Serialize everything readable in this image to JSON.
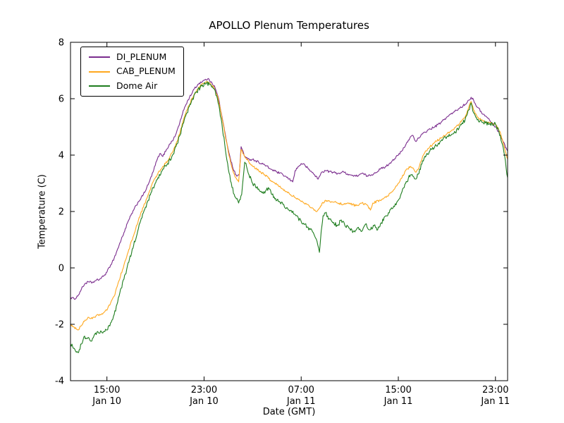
{
  "chart_data": {
    "type": "line",
    "title": "APOLLO Plenum Temperatures",
    "xlabel": "Date (GMT)",
    "ylabel": "Temperature (C)",
    "x_unit_hours_origin": "Jan 10 12:00 GMT",
    "xlim": [
      0,
      36
    ],
    "ylim": [
      -4,
      8
    ],
    "grid": false,
    "legend_position": "upper left",
    "x_ticks": [
      {
        "t": 3,
        "time": "15:00",
        "date": "Jan 10"
      },
      {
        "t": 11,
        "time": "23:00",
        "date": "Jan 10"
      },
      {
        "t": 19,
        "time": "07:00",
        "date": "Jan 11"
      },
      {
        "t": 27,
        "time": "15:00",
        "date": "Jan 11"
      },
      {
        "t": 35,
        "time": "23:00",
        "date": "Jan 11"
      }
    ],
    "y_ticks": [
      -4,
      -2,
      0,
      2,
      4,
      6,
      8
    ],
    "series": [
      {
        "name": "DI_PLENUM",
        "color": "#7b2d8e",
        "noise": 0.04,
        "points": [
          [
            0,
            -1.05
          ],
          [
            0.3,
            -1.1
          ],
          [
            0.6,
            -1.0
          ],
          [
            0.9,
            -0.75
          ],
          [
            1.2,
            -0.55
          ],
          [
            1.5,
            -0.5
          ],
          [
            1.8,
            -0.52
          ],
          [
            2.1,
            -0.45
          ],
          [
            2.4,
            -0.4
          ],
          [
            2.7,
            -0.3
          ],
          [
            3.0,
            -0.15
          ],
          [
            3.3,
            0.1
          ],
          [
            3.6,
            0.35
          ],
          [
            4.0,
            0.8
          ],
          [
            4.4,
            1.25
          ],
          [
            4.8,
            1.7
          ],
          [
            5.2,
            2.05
          ],
          [
            5.6,
            2.35
          ],
          [
            6.0,
            2.6
          ],
          [
            6.4,
            2.95
          ],
          [
            6.8,
            3.4
          ],
          [
            7.1,
            3.8
          ],
          [
            7.35,
            4.05
          ],
          [
            7.6,
            3.95
          ],
          [
            7.9,
            4.2
          ],
          [
            8.2,
            4.4
          ],
          [
            8.6,
            4.65
          ],
          [
            9.0,
            5.15
          ],
          [
            9.4,
            5.7
          ],
          [
            9.8,
            6.05
          ],
          [
            10.2,
            6.35
          ],
          [
            10.6,
            6.55
          ],
          [
            11.0,
            6.65
          ],
          [
            11.3,
            6.7
          ],
          [
            11.6,
            6.6
          ],
          [
            11.9,
            6.4
          ],
          [
            12.2,
            6.0
          ],
          [
            12.5,
            5.3
          ],
          [
            12.8,
            4.6
          ],
          [
            13.1,
            4.0
          ],
          [
            13.4,
            3.5
          ],
          [
            13.7,
            3.25
          ],
          [
            13.9,
            3.3
          ],
          [
            14.05,
            4.3
          ],
          [
            14.2,
            4.15
          ],
          [
            14.35,
            3.95
          ],
          [
            14.6,
            3.85
          ],
          [
            15.0,
            3.85
          ],
          [
            15.5,
            3.75
          ],
          [
            16.0,
            3.65
          ],
          [
            16.5,
            3.5
          ],
          [
            17.0,
            3.4
          ],
          [
            17.5,
            3.3
          ],
          [
            18.0,
            3.15
          ],
          [
            18.3,
            3.05
          ],
          [
            18.5,
            3.45
          ],
          [
            18.8,
            3.6
          ],
          [
            19.0,
            3.7
          ],
          [
            19.3,
            3.65
          ],
          [
            19.6,
            3.5
          ],
          [
            20.0,
            3.35
          ],
          [
            20.4,
            3.15
          ],
          [
            20.7,
            3.4
          ],
          [
            21.0,
            3.45
          ],
          [
            21.5,
            3.4
          ],
          [
            22.0,
            3.35
          ],
          [
            22.5,
            3.4
          ],
          [
            23.0,
            3.3
          ],
          [
            23.5,
            3.25
          ],
          [
            24.0,
            3.35
          ],
          [
            24.5,
            3.25
          ],
          [
            25.0,
            3.35
          ],
          [
            25.5,
            3.5
          ],
          [
            26.0,
            3.6
          ],
          [
            26.5,
            3.8
          ],
          [
            27.0,
            4.0
          ],
          [
            27.3,
            4.15
          ],
          [
            27.6,
            4.35
          ],
          [
            28.0,
            4.65
          ],
          [
            28.2,
            4.7
          ],
          [
            28.4,
            4.5
          ],
          [
            28.7,
            4.6
          ],
          [
            29.0,
            4.75
          ],
          [
            29.5,
            4.9
          ],
          [
            30.0,
            5.0
          ],
          [
            30.5,
            5.15
          ],
          [
            31.0,
            5.35
          ],
          [
            31.5,
            5.5
          ],
          [
            32.0,
            5.65
          ],
          [
            32.5,
            5.8
          ],
          [
            32.8,
            5.95
          ],
          [
            33.0,
            6.05
          ],
          [
            33.2,
            5.95
          ],
          [
            33.5,
            5.7
          ],
          [
            34.0,
            5.45
          ],
          [
            34.5,
            5.25
          ],
          [
            35.0,
            5.0
          ],
          [
            35.3,
            4.8
          ],
          [
            35.6,
            4.5
          ],
          [
            36.0,
            4.15
          ]
        ]
      },
      {
        "name": "CAB_PLENUM",
        "color": "#ffa81e",
        "noise": 0.04,
        "points": [
          [
            0,
            -2.0
          ],
          [
            0.3,
            -2.1
          ],
          [
            0.6,
            -2.2
          ],
          [
            0.9,
            -2.05
          ],
          [
            1.2,
            -1.85
          ],
          [
            1.5,
            -1.75
          ],
          [
            1.8,
            -1.8
          ],
          [
            2.1,
            -1.7
          ],
          [
            2.4,
            -1.65
          ],
          [
            2.7,
            -1.6
          ],
          [
            3.0,
            -1.5
          ],
          [
            3.3,
            -1.25
          ],
          [
            3.6,
            -1.0
          ],
          [
            4.0,
            -0.45
          ],
          [
            4.4,
            0.1
          ],
          [
            4.8,
            0.65
          ],
          [
            5.2,
            1.15
          ],
          [
            5.6,
            1.7
          ],
          [
            6.0,
            2.15
          ],
          [
            6.4,
            2.6
          ],
          [
            6.8,
            3.05
          ],
          [
            7.2,
            3.35
          ],
          [
            7.6,
            3.6
          ],
          [
            8.0,
            3.8
          ],
          [
            8.4,
            4.1
          ],
          [
            8.8,
            4.5
          ],
          [
            9.2,
            5.1
          ],
          [
            9.6,
            5.6
          ],
          [
            10.0,
            6.0
          ],
          [
            10.4,
            6.3
          ],
          [
            10.8,
            6.5
          ],
          [
            11.2,
            6.6
          ],
          [
            11.5,
            6.55
          ],
          [
            11.8,
            6.4
          ],
          [
            12.1,
            6.1
          ],
          [
            12.4,
            5.5
          ],
          [
            12.7,
            4.8
          ],
          [
            13.0,
            4.1
          ],
          [
            13.3,
            3.55
          ],
          [
            13.6,
            3.2
          ],
          [
            13.85,
            3.05
          ],
          [
            14.05,
            4.2
          ],
          [
            14.2,
            4.05
          ],
          [
            14.4,
            3.9
          ],
          [
            14.7,
            3.75
          ],
          [
            15.0,
            3.6
          ],
          [
            15.5,
            3.45
          ],
          [
            16.0,
            3.3
          ],
          [
            16.5,
            3.1
          ],
          [
            17.0,
            2.95
          ],
          [
            17.5,
            2.8
          ],
          [
            18.0,
            2.65
          ],
          [
            18.5,
            2.5
          ],
          [
            19.0,
            2.35
          ],
          [
            19.5,
            2.25
          ],
          [
            20.0,
            2.1
          ],
          [
            20.3,
            2.0
          ],
          [
            20.6,
            2.2
          ],
          [
            21.0,
            2.4
          ],
          [
            21.5,
            2.35
          ],
          [
            22.0,
            2.3
          ],
          [
            22.5,
            2.25
          ],
          [
            23.0,
            2.3
          ],
          [
            23.5,
            2.2
          ],
          [
            24.0,
            2.3
          ],
          [
            24.5,
            2.2
          ],
          [
            24.7,
            2.05
          ],
          [
            24.9,
            2.3
          ],
          [
            25.5,
            2.4
          ],
          [
            26.0,
            2.5
          ],
          [
            26.5,
            2.7
          ],
          [
            27.0,
            3.0
          ],
          [
            27.3,
            3.2
          ],
          [
            27.6,
            3.45
          ],
          [
            28.0,
            3.6
          ],
          [
            28.2,
            3.55
          ],
          [
            28.4,
            3.4
          ],
          [
            28.7,
            3.55
          ],
          [
            29.0,
            3.95
          ],
          [
            29.3,
            4.15
          ],
          [
            29.6,
            4.3
          ],
          [
            30.0,
            4.45
          ],
          [
            30.5,
            4.6
          ],
          [
            31.0,
            4.75
          ],
          [
            31.5,
            4.9
          ],
          [
            32.0,
            5.1
          ],
          [
            32.5,
            5.35
          ],
          [
            32.8,
            5.7
          ],
          [
            33.0,
            5.9
          ],
          [
            33.2,
            5.6
          ],
          [
            33.5,
            5.35
          ],
          [
            34.0,
            5.2
          ],
          [
            34.5,
            5.15
          ],
          [
            35.0,
            5.1
          ],
          [
            35.4,
            4.8
          ],
          [
            35.7,
            4.35
          ],
          [
            36.0,
            3.85
          ]
        ]
      },
      {
        "name": "Dome Air",
        "color": "#1e7d1e",
        "noise": 0.07,
        "points": [
          [
            0,
            -2.7
          ],
          [
            0.3,
            -2.85
          ],
          [
            0.6,
            -3.0
          ],
          [
            0.9,
            -2.7
          ],
          [
            1.1,
            -2.45
          ],
          [
            1.4,
            -2.5
          ],
          [
            1.7,
            -2.6
          ],
          [
            2.0,
            -2.35
          ],
          [
            2.3,
            -2.3
          ],
          [
            2.6,
            -2.3
          ],
          [
            3.0,
            -2.2
          ],
          [
            3.3,
            -1.95
          ],
          [
            3.6,
            -1.65
          ],
          [
            4.0,
            -1.0
          ],
          [
            4.4,
            -0.4
          ],
          [
            4.8,
            0.2
          ],
          [
            5.2,
            0.8
          ],
          [
            5.6,
            1.4
          ],
          [
            6.0,
            1.95
          ],
          [
            6.4,
            2.4
          ],
          [
            6.8,
            2.85
          ],
          [
            7.2,
            3.2
          ],
          [
            7.6,
            3.5
          ],
          [
            8.0,
            3.7
          ],
          [
            8.4,
            4.0
          ],
          [
            8.8,
            4.4
          ],
          [
            9.2,
            5.0
          ],
          [
            9.6,
            5.5
          ],
          [
            10.0,
            5.95
          ],
          [
            10.4,
            6.25
          ],
          [
            10.8,
            6.45
          ],
          [
            11.2,
            6.55
          ],
          [
            11.5,
            6.5
          ],
          [
            11.8,
            6.35
          ],
          [
            12.1,
            6.0
          ],
          [
            12.4,
            5.3
          ],
          [
            12.7,
            4.4
          ],
          [
            13.0,
            3.5
          ],
          [
            13.3,
            2.85
          ],
          [
            13.6,
            2.5
          ],
          [
            13.85,
            2.3
          ],
          [
            14.1,
            2.6
          ],
          [
            14.35,
            3.75
          ],
          [
            14.5,
            3.6
          ],
          [
            14.7,
            3.3
          ],
          [
            15.0,
            3.0
          ],
          [
            15.5,
            2.8
          ],
          [
            16.0,
            2.65
          ],
          [
            16.3,
            2.85
          ],
          [
            16.6,
            2.6
          ],
          [
            17.0,
            2.4
          ],
          [
            17.5,
            2.25
          ],
          [
            18.0,
            2.05
          ],
          [
            18.5,
            1.9
          ],
          [
            19.0,
            1.65
          ],
          [
            19.5,
            1.45
          ],
          [
            20.0,
            1.25
          ],
          [
            20.3,
            0.95
          ],
          [
            20.5,
            0.55
          ],
          [
            20.65,
            1.3
          ],
          [
            20.8,
            1.85
          ],
          [
            21.0,
            1.95
          ],
          [
            21.3,
            1.75
          ],
          [
            21.6,
            1.6
          ],
          [
            22.0,
            1.5
          ],
          [
            22.3,
            1.7
          ],
          [
            22.6,
            1.5
          ],
          [
            23.0,
            1.4
          ],
          [
            23.3,
            1.3
          ],
          [
            23.6,
            1.4
          ],
          [
            24.0,
            1.3
          ],
          [
            24.3,
            1.55
          ],
          [
            24.6,
            1.35
          ],
          [
            25.0,
            1.5
          ],
          [
            25.3,
            1.35
          ],
          [
            25.6,
            1.6
          ],
          [
            26.0,
            1.85
          ],
          [
            26.5,
            2.1
          ],
          [
            27.0,
            2.4
          ],
          [
            27.3,
            2.7
          ],
          [
            27.6,
            3.0
          ],
          [
            28.0,
            3.3
          ],
          [
            28.2,
            3.25
          ],
          [
            28.4,
            3.15
          ],
          [
            28.7,
            3.35
          ],
          [
            29.0,
            3.8
          ],
          [
            29.3,
            4.0
          ],
          [
            29.6,
            4.15
          ],
          [
            30.0,
            4.3
          ],
          [
            30.5,
            4.5
          ],
          [
            31.0,
            4.65
          ],
          [
            31.5,
            4.75
          ],
          [
            32.0,
            4.95
          ],
          [
            32.5,
            5.25
          ],
          [
            32.8,
            5.6
          ],
          [
            33.0,
            5.85
          ],
          [
            33.2,
            5.5
          ],
          [
            33.5,
            5.25
          ],
          [
            34.0,
            5.15
          ],
          [
            34.5,
            5.1
          ],
          [
            35.0,
            5.1
          ],
          [
            35.4,
            4.7
          ],
          [
            35.7,
            4.1
          ],
          [
            36.0,
            3.2
          ]
        ]
      }
    ]
  }
}
